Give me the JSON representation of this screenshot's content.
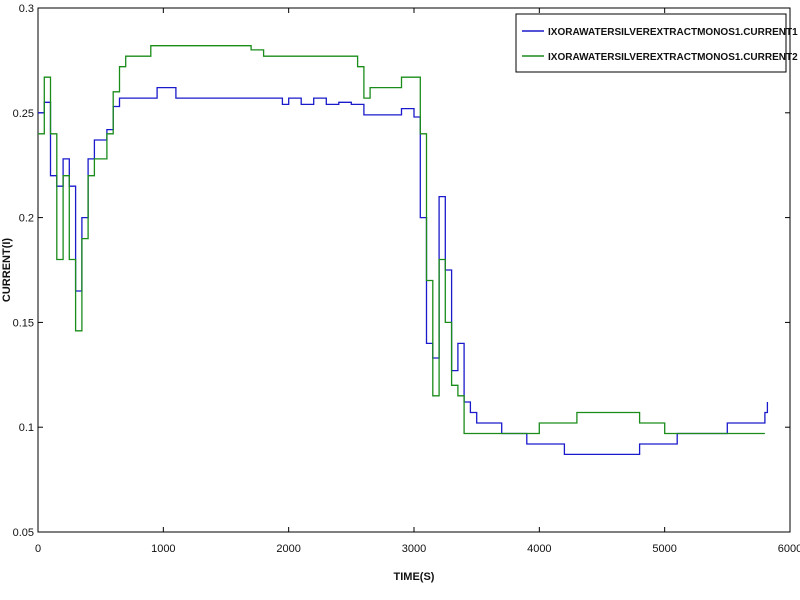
{
  "chart_data": {
    "type": "line",
    "title": "",
    "xlabel": "TIME(S)",
    "ylabel": "CURRENT(I)",
    "xlim": [
      0,
      6000
    ],
    "ylim": [
      0.05,
      0.3
    ],
    "x_ticks": [
      0,
      1000,
      2000,
      3000,
      4000,
      5000,
      6000
    ],
    "y_ticks": [
      0.05,
      0.1,
      0.15,
      0.2,
      0.25,
      0.3
    ],
    "x_tick_labels": [
      "0",
      "1000",
      "2000",
      "3000",
      "4000",
      "5000",
      "6000"
    ],
    "y_tick_labels": [
      "0.05",
      "0.1",
      "0.15",
      "0.2",
      "0.25",
      "0.3"
    ],
    "grid": false,
    "legend_position": "top-right",
    "series": [
      {
        "name": "IXORAWATERSILVEREXTRACTMONOS1.CURRENT1",
        "color": "#1a1acc",
        "x": [
          0,
          50,
          100,
          150,
          200,
          250,
          300,
          350,
          400,
          450,
          500,
          550,
          600,
          650,
          700,
          750,
          900,
          950,
          1000,
          1050,
          1100,
          1150,
          1200,
          1500,
          1900,
          1950,
          2000,
          2100,
          2200,
          2300,
          2400,
          2500,
          2600,
          2700,
          2800,
          2900,
          2950,
          3000,
          3050,
          3100,
          3150,
          3200,
          3250,
          3300,
          3350,
          3400,
          3450,
          3500,
          3600,
          3700,
          3800,
          3900,
          4000,
          4100,
          4200,
          4300,
          4400,
          4500,
          4600,
          4700,
          4800,
          4900,
          5000,
          5100,
          5200,
          5300,
          5400,
          5500,
          5600,
          5700,
          5800,
          5820
        ],
        "y": [
          0.25,
          0.255,
          0.22,
          0.215,
          0.228,
          0.215,
          0.165,
          0.2,
          0.228,
          0.237,
          0.237,
          0.242,
          0.253,
          0.257,
          0.257,
          0.257,
          0.257,
          0.262,
          0.262,
          0.262,
          0.257,
          0.257,
          0.257,
          0.257,
          0.257,
          0.254,
          0.257,
          0.254,
          0.257,
          0.254,
          0.255,
          0.254,
          0.249,
          0.249,
          0.249,
          0.252,
          0.252,
          0.248,
          0.2,
          0.14,
          0.133,
          0.21,
          0.175,
          0.127,
          0.14,
          0.112,
          0.107,
          0.102,
          0.102,
          0.097,
          0.097,
          0.092,
          0.092,
          0.092,
          0.087,
          0.087,
          0.087,
          0.087,
          0.087,
          0.087,
          0.092,
          0.092,
          0.092,
          0.097,
          0.097,
          0.097,
          0.097,
          0.102,
          0.102,
          0.102,
          0.107,
          0.112
        ]
      },
      {
        "name": "IXORAWATERSILVEREXTRACTMONOS1.CURRENT2",
        "color": "#1a8c1a",
        "x": [
          0,
          50,
          100,
          150,
          200,
          250,
          300,
          350,
          400,
          450,
          500,
          550,
          600,
          650,
          700,
          750,
          900,
          950,
          1000,
          1100,
          1200,
          1400,
          1600,
          1700,
          1800,
          1900,
          2000,
          2200,
          2400,
          2500,
          2550,
          2600,
          2650,
          2800,
          2900,
          3000,
          3050,
          3100,
          3150,
          3200,
          3250,
          3300,
          3350,
          3400,
          3450,
          3500,
          3600,
          3700,
          3800,
          3900,
          4000,
          4100,
          4200,
          4300,
          4400,
          4500,
          4600,
          4700,
          4800,
          4900,
          5000,
          5100,
          5200,
          5300,
          5400,
          5500,
          5600,
          5700,
          5800
        ],
        "y": [
          0.24,
          0.267,
          0.24,
          0.18,
          0.22,
          0.18,
          0.146,
          0.19,
          0.22,
          0.228,
          0.228,
          0.24,
          0.26,
          0.272,
          0.277,
          0.277,
          0.282,
          0.282,
          0.282,
          0.282,
          0.282,
          0.282,
          0.282,
          0.28,
          0.277,
          0.277,
          0.277,
          0.277,
          0.277,
          0.277,
          0.272,
          0.257,
          0.262,
          0.262,
          0.267,
          0.267,
          0.24,
          0.17,
          0.115,
          0.18,
          0.15,
          0.12,
          0.115,
          0.097,
          0.097,
          0.097,
          0.097,
          0.097,
          0.097,
          0.097,
          0.102,
          0.102,
          0.102,
          0.107,
          0.107,
          0.107,
          0.107,
          0.107,
          0.102,
          0.102,
          0.097,
          0.097,
          0.097,
          0.097,
          0.097,
          0.097,
          0.097,
          0.097,
          0.097
        ]
      }
    ]
  }
}
